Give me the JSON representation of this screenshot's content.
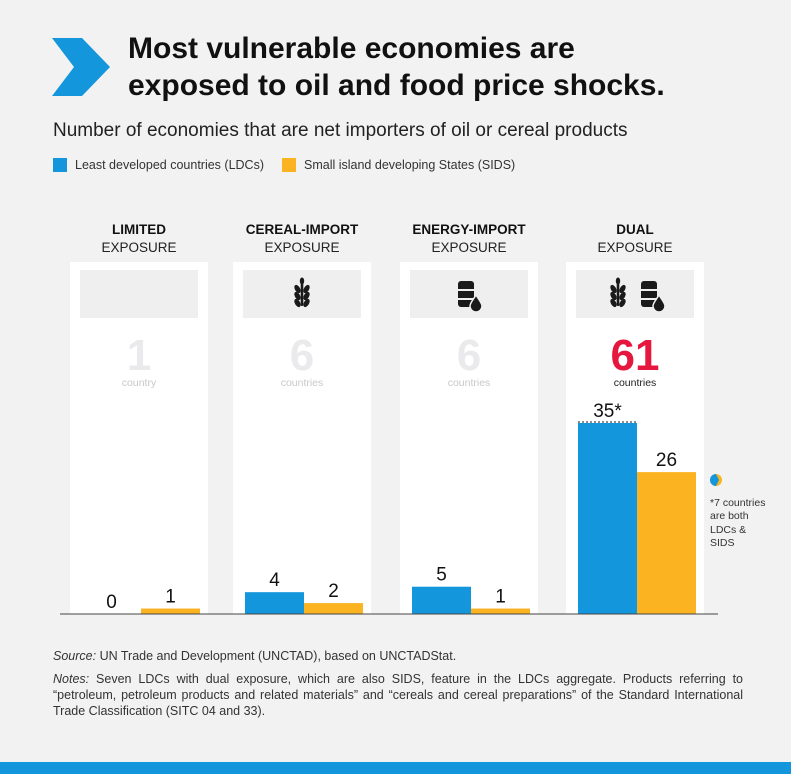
{
  "colors": {
    "ldc": "#1396db",
    "sids": "#fbb321",
    "accent_red": "#e5173f",
    "bottom_bar": "#1396db",
    "faint_number": "#eaeaec",
    "icon_box": "#efefef"
  },
  "header": {
    "title_line1": "Most vulnerable economies are",
    "title_line2": "exposed to oil and food price shocks.",
    "subtitle": "Number of economies that are net importers of oil or cereal products",
    "chevron_icon": "chevron-right-icon"
  },
  "legend": [
    {
      "label": "Least developed countries (LDCs)",
      "color": "#1396db"
    },
    {
      "label": "Small island developing States (SIDS)",
      "color": "#fbb321"
    }
  ],
  "chart_data": {
    "type": "bar",
    "categories": [
      {
        "line1": "LIMITED",
        "line2": "EXPOSURE",
        "icons": [],
        "total": "1",
        "total_unit": "country"
      },
      {
        "line1": "CEREAL-IMPORT",
        "line2": "EXPOSURE",
        "icons": [
          "wheat-icon"
        ],
        "total": "6",
        "total_unit": "countries"
      },
      {
        "line1": "ENERGY-IMPORT",
        "line2": "EXPOSURE",
        "icons": [
          "oil-barrel-icon"
        ],
        "total": "6",
        "total_unit": "countries"
      },
      {
        "line1": "DUAL",
        "line2": "EXPOSURE",
        "icons": [
          "wheat-icon",
          "oil-barrel-icon"
        ],
        "total": "61",
        "total_unit": "countries"
      }
    ],
    "series": [
      {
        "name": "Least developed countries (LDCs)",
        "values": [
          0,
          4,
          5,
          35
        ],
        "labels": [
          "0",
          "4",
          "5",
          "35*"
        ]
      },
      {
        "name": "Small island developing States (SIDS)",
        "values": [
          1,
          2,
          1,
          26
        ],
        "labels": [
          "1",
          "2",
          "1",
          "26"
        ]
      }
    ],
    "ylim": [
      0,
      35
    ],
    "grid": false,
    "legend_position": "top-left"
  },
  "side_note": "*7 countries are both LDCs & SIDS",
  "footer": {
    "source_label": "Source:",
    "source_text": " UN Trade and Development (UNCTAD), based on UNCTADStat.",
    "notes_label": "Notes:",
    "notes_text": " Seven LDCs with dual exposure, which are also SIDS, feature in the LDCs aggregate. Products referring to “petroleum, petroleum products and related materials” and “cereals and cereal preparations” of the Standard International Trade Classification (SITC 04 and 33)."
  }
}
